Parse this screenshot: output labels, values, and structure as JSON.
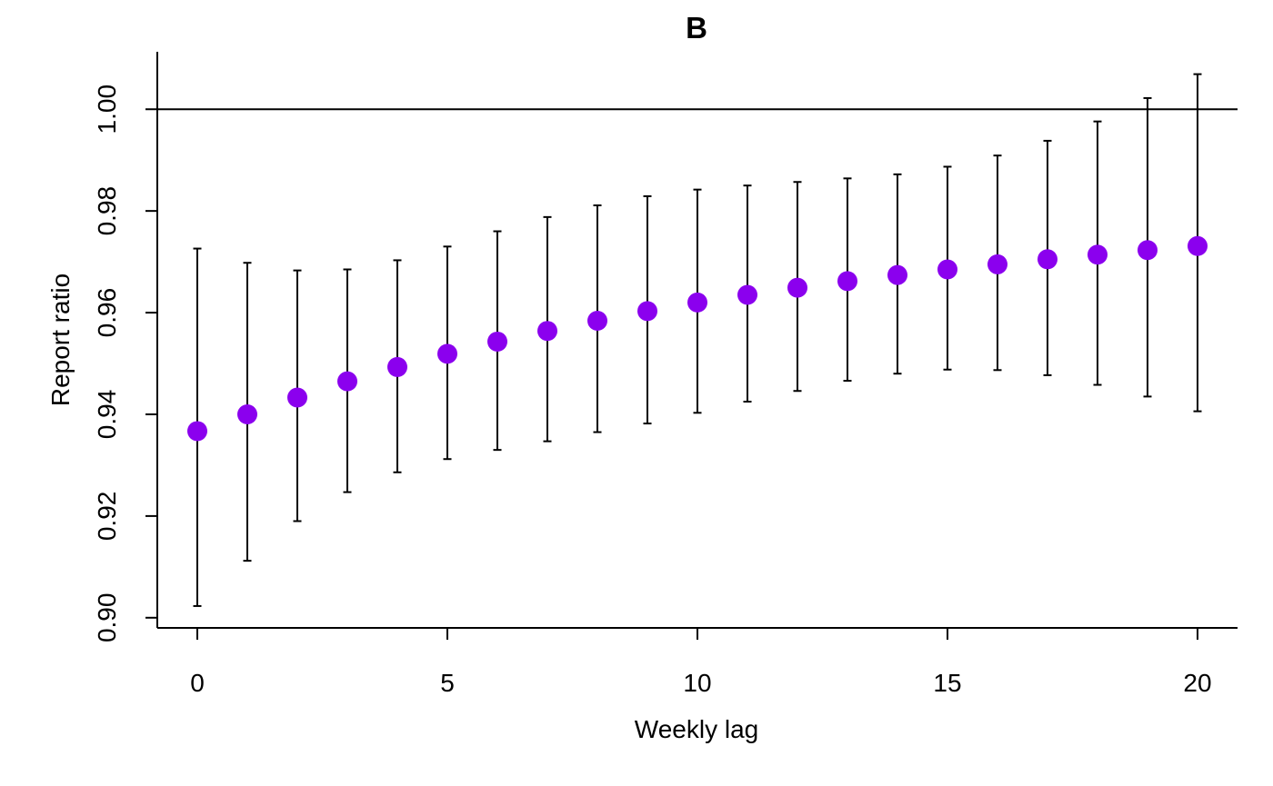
{
  "chart_data": {
    "type": "scatter",
    "title": "B",
    "xlabel": "Weekly lag",
    "ylabel": "Report ratio",
    "xlim": [
      -0.8,
      20.8
    ],
    "ylim": [
      0.898,
      1.0113
    ],
    "x_ticks": [
      0,
      5,
      10,
      15,
      20
    ],
    "x_tick_labels": [
      "0",
      "5",
      "10",
      "15",
      "20"
    ],
    "y_ticks": [
      0.9,
      0.92,
      0.94,
      0.96,
      0.98,
      1.0
    ],
    "y_tick_labels": [
      "0.90",
      "0.92",
      "0.94",
      "0.96",
      "0.98",
      "1.00"
    ],
    "reference_line": 1.0,
    "grid": false,
    "point_color": "#8B00EE",
    "line_color": "#000000",
    "x": [
      0,
      1,
      2,
      3,
      4,
      5,
      6,
      7,
      8,
      9,
      10,
      11,
      12,
      13,
      14,
      15,
      16,
      17,
      18,
      19,
      20
    ],
    "y": [
      0.9367,
      0.94,
      0.9433,
      0.9465,
      0.9493,
      0.9519,
      0.9543,
      0.9564,
      0.9584,
      0.9603,
      0.962,
      0.9635,
      0.9649,
      0.9662,
      0.9674,
      0.9685,
      0.9695,
      0.9705,
      0.9714,
      0.9723,
      0.9731
    ],
    "lower": [
      0.9023,
      0.9112,
      0.919,
      0.9247,
      0.9286,
      0.9312,
      0.933,
      0.9347,
      0.9365,
      0.9382,
      0.9403,
      0.9425,
      0.9446,
      0.9466,
      0.948,
      0.9488,
      0.9487,
      0.9477,
      0.9458,
      0.9435,
      0.9406
    ],
    "upper": [
      0.9726,
      0.9698,
      0.9683,
      0.9685,
      0.9703,
      0.973,
      0.976,
      0.9788,
      0.9811,
      0.9829,
      0.9842,
      0.985,
      0.9857,
      0.9864,
      0.9872,
      0.9887,
      0.9909,
      0.9938,
      0.9976,
      1.0022,
      1.0069
    ]
  }
}
